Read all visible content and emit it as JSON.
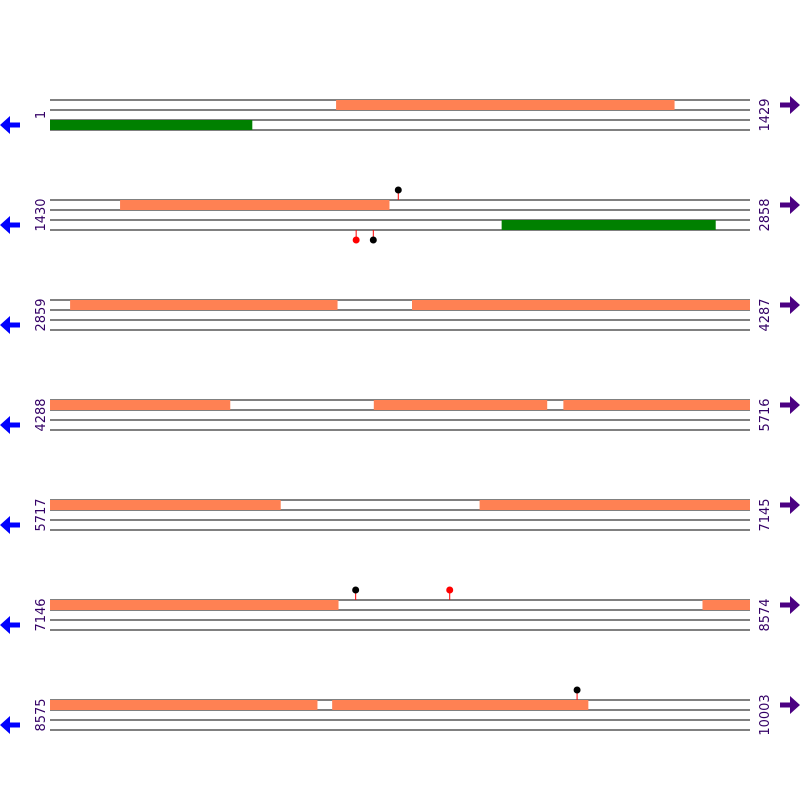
{
  "colors": {
    "orf": "#ff8153",
    "gene": "#008000",
    "line": "#000000",
    "marker_black": "#000000",
    "marker_red": "#ff0000",
    "arrow_forward": "#4b0082",
    "arrow_reverse": "#0000ff"
  },
  "icons": {
    "forward": "arrow-right-icon",
    "reverse": "arrow-left-icon"
  },
  "rows": [
    {
      "start": 1,
      "end": 1429,
      "start_label": "1",
      "end_label": "1429",
      "features": [
        {
          "lane": 0,
          "type": "orf",
          "from": 585,
          "to": 1275
        },
        {
          "lane": 2,
          "type": "gene",
          "from": 1,
          "to": 413
        }
      ],
      "markers": []
    },
    {
      "start": 1430,
      "end": 2858,
      "start_label": "1430",
      "end_label": "2858",
      "features": [
        {
          "lane": 0,
          "type": "orf",
          "from": 1573,
          "to": 2122
        },
        {
          "lane": 2,
          "type": "gene",
          "from": 2352,
          "to": 2788
        }
      ],
      "markers": [
        {
          "pos": 2141,
          "side": "top",
          "color": "black"
        },
        {
          "pos": 2055,
          "side": "bottom",
          "color": "red"
        },
        {
          "pos": 2090,
          "side": "bottom",
          "color": "black"
        }
      ]
    },
    {
      "start": 2859,
      "end": 4287,
      "start_label": "2859",
      "end_label": "4287",
      "features": [
        {
          "lane": 0,
          "type": "orf",
          "from": 2900,
          "to": 3445
        },
        {
          "lane": 0,
          "type": "orf",
          "from": 3598,
          "to": 4287
        }
      ],
      "markers": []
    },
    {
      "start": 4288,
      "end": 5716,
      "start_label": "4288",
      "end_label": "5716",
      "features": [
        {
          "lane": 0,
          "type": "orf",
          "from": 4288,
          "to": 4655
        },
        {
          "lane": 0,
          "type": "orf",
          "from": 4949,
          "to": 5302
        },
        {
          "lane": 0,
          "type": "orf",
          "from": 5336,
          "to": 5716
        }
      ],
      "markers": []
    },
    {
      "start": 5717,
      "end": 7145,
      "start_label": "5717",
      "end_label": "7145",
      "features": [
        {
          "lane": 0,
          "type": "orf",
          "from": 5717,
          "to": 6187
        },
        {
          "lane": 0,
          "type": "orf",
          "from": 6594,
          "to": 7145
        }
      ],
      "markers": []
    },
    {
      "start": 7146,
      "end": 8574,
      "start_label": "7146",
      "end_label": "8574",
      "features": [
        {
          "lane": 0,
          "type": "orf",
          "from": 7146,
          "to": 7734
        },
        {
          "lane": 0,
          "type": "orf",
          "from": 8478,
          "to": 8574
        }
      ],
      "markers": [
        {
          "pos": 7770,
          "side": "top",
          "color": "black"
        },
        {
          "pos": 7962,
          "side": "top",
          "color": "red"
        }
      ]
    },
    {
      "start": 8575,
      "end": 10003,
      "start_label": "8575",
      "end_label": "10003",
      "features": [
        {
          "lane": 0,
          "type": "orf",
          "from": 8575,
          "to": 9120
        },
        {
          "lane": 0,
          "type": "orf",
          "from": 9151,
          "to": 9673
        }
      ],
      "markers": [
        {
          "pos": 9651,
          "side": "top",
          "color": "black"
        }
      ]
    }
  ]
}
